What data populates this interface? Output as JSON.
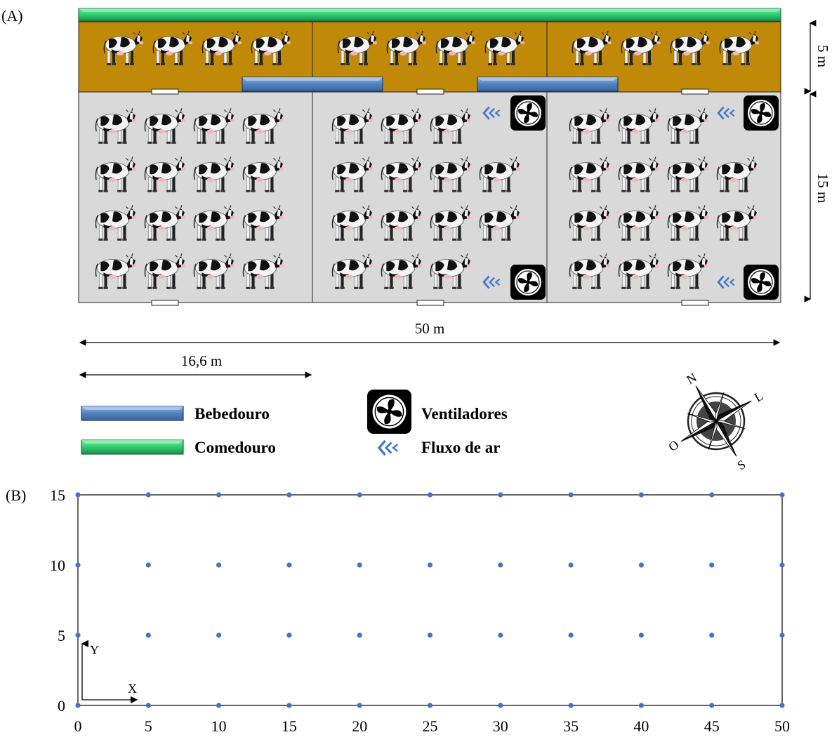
{
  "panel_a": {
    "label": "(A)",
    "dimensions": {
      "length": "50 m",
      "section_width": "16,6 m",
      "feed_zone_depth": "5 m",
      "rest_zone_depth": "15 m"
    },
    "pens": 3,
    "cows_feed_zone_per_pen": 4,
    "cows_rest_zone_per_pen": [
      16,
      14,
      14
    ],
    "fans_per_pen": [
      0,
      2,
      2
    ],
    "compass": {
      "north": "N",
      "east": "L",
      "south": "S",
      "west": "O"
    },
    "colors": {
      "feed_zone": "#C08A08",
      "rest_zone": "#D9D9D9",
      "water_trough": "#4F81BD",
      "feeder": "#2ECC71",
      "airflow": "#3F78C8",
      "fan": "#000000"
    },
    "legend": [
      {
        "icon": "water-trough",
        "label": "Bebedouro"
      },
      {
        "icon": "feeder",
        "label": "Comedouro"
      },
      {
        "icon": "fan",
        "label": "Ventiladores"
      },
      {
        "icon": "airflow-chevrons",
        "label": "Fluxo de ar"
      }
    ]
  },
  "panel_b": {
    "label": "(B)",
    "axis_x_label": "X",
    "axis_y_label": "Y"
  },
  "chart_data": {
    "type": "scatter",
    "x_ticks": [
      0,
      5,
      10,
      15,
      20,
      25,
      30,
      35,
      40,
      45,
      50
    ],
    "y_ticks": [
      0,
      5,
      10,
      15
    ],
    "xlim": [
      0,
      50
    ],
    "ylim": [
      0,
      15
    ],
    "grid": false,
    "point_color": "#4472C4",
    "points_x": [
      0,
      5,
      10,
      15,
      20,
      25,
      30,
      35,
      40,
      45,
      50
    ],
    "points_y": [
      0,
      5,
      10,
      15
    ]
  }
}
